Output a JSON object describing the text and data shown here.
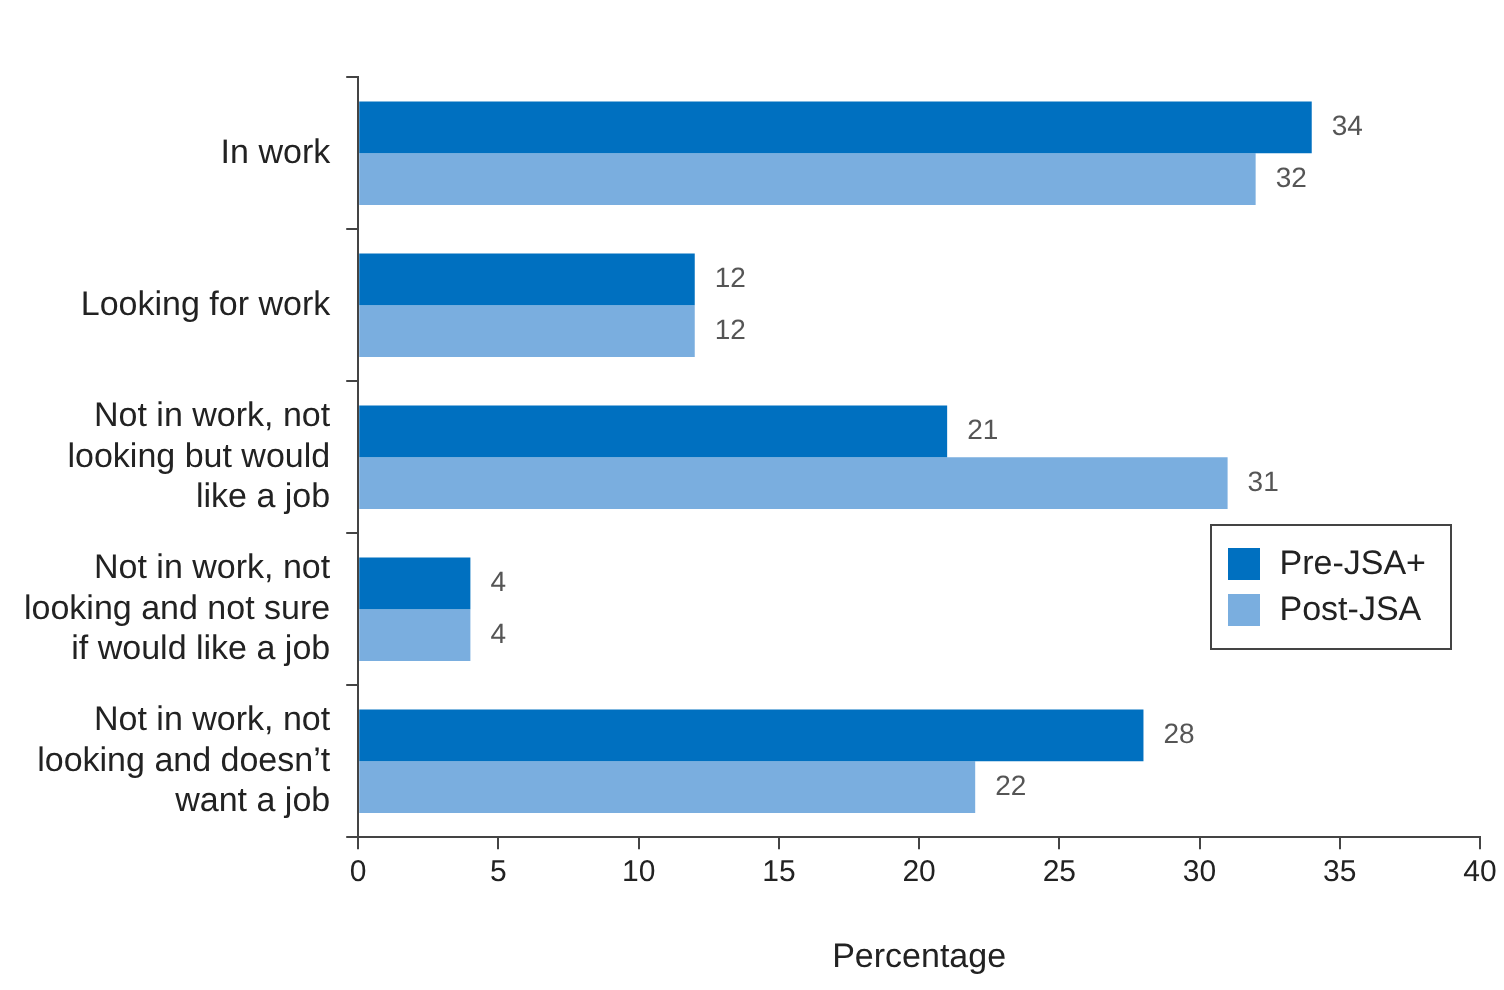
{
  "chart_data": {
    "type": "bar",
    "orientation": "horizontal",
    "xlabel": "Percentage",
    "categories": [
      "In work",
      "Looking for work",
      "Not in work, not\nlooking but would\nlike a job",
      "Not in work, not\nlooking and not sure\nif would like a job",
      "Not in work, not\nlooking and doesn’t\nwant a job"
    ],
    "series": [
      {
        "name": "Pre-JSA+",
        "color": "#0070c0",
        "values": [
          34,
          12,
          21,
          4,
          28
        ]
      },
      {
        "name": "Post-JSA",
        "color": "#7aaedf",
        "values": [
          32,
          12,
          31,
          4,
          22
        ]
      }
    ],
    "xlim": [
      0,
      40
    ],
    "xticks": [
      0,
      5,
      10,
      15,
      20,
      25,
      30,
      35,
      40
    ],
    "grid": false,
    "legend": "right",
    "data_labels": true
  }
}
